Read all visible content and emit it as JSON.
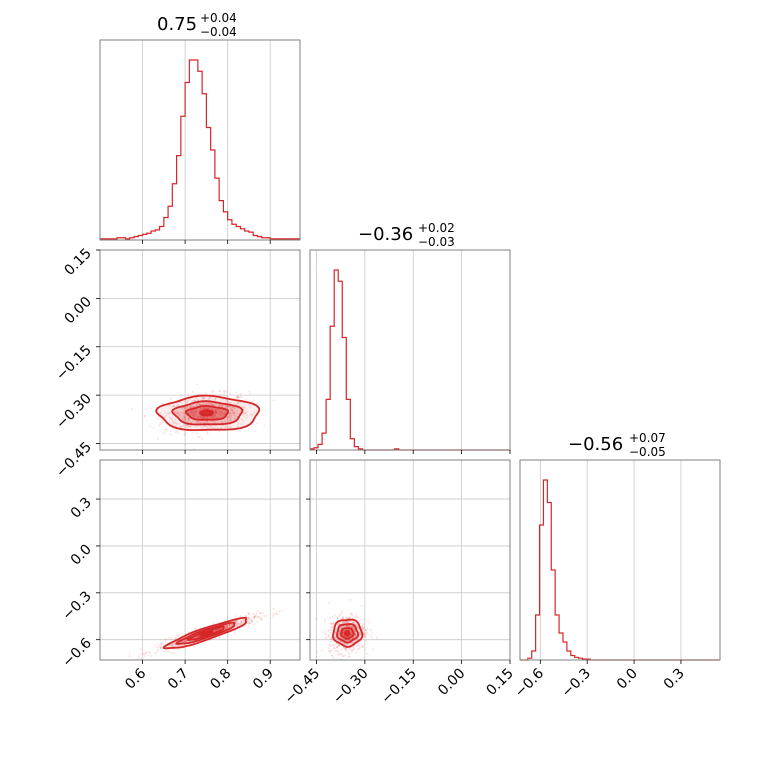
{
  "chart_data": {
    "type": "corner",
    "color": "#d62728",
    "grid": true,
    "panels": {
      "hist_0": {
        "type": "histogram",
        "title": {
          "value": "0.75",
          "plus": "+0.04",
          "minus": "−0.04"
        },
        "xlim": [
          0.5,
          0.97
        ],
        "bin_width": 0.01,
        "bin_start": 0.5,
        "counts": [
          1,
          1,
          1,
          1,
          2,
          2,
          1,
          2,
          3,
          4,
          5,
          6,
          8,
          9,
          12,
          20,
          30,
          50,
          75,
          110,
          140,
          160,
          160,
          150,
          130,
          100,
          80,
          55,
          35,
          25,
          18,
          14,
          12,
          10,
          8,
          7,
          4,
          3,
          2,
          2,
          1,
          1,
          1,
          1,
          1,
          1,
          1
        ],
        "xticks": [
          0.6,
          0.7,
          0.8,
          0.9
        ]
      },
      "hist_1": {
        "type": "histogram",
        "title": {
          "value": "−0.36",
          "plus": "+0.02",
          "minus": "−0.03"
        },
        "xlim": [
          -0.47,
          0.15
        ],
        "bin_width": 0.0125,
        "bin_start": -0.47,
        "counts": [
          1,
          2,
          5,
          15,
          45,
          110,
          160,
          150,
          100,
          45,
          10,
          3,
          1,
          0,
          0,
          0,
          0,
          0,
          0,
          0,
          0,
          1,
          0,
          0,
          0,
          0,
          0,
          0,
          0,
          0,
          0,
          0,
          0,
          0,
          0,
          0,
          0,
          0,
          0,
          0,
          0,
          0,
          0,
          0,
          0,
          0,
          0,
          0,
          0,
          0
        ],
        "xticks": [
          -0.45,
          -0.3,
          -0.15,
          0.0,
          0.15
        ]
      },
      "hist_2": {
        "type": "histogram",
        "title": {
          "value": "−0.56",
          "plus": "+0.07",
          "minus": "−0.05"
        },
        "xlim": [
          -0.73,
          0.55
        ],
        "bin_width": 0.025,
        "bin_start": -0.73,
        "counts": [
          0,
          0,
          2,
          10,
          50,
          150,
          200,
          175,
          100,
          50,
          30,
          20,
          10,
          5,
          3,
          2,
          1,
          1,
          0,
          0,
          0,
          0,
          0,
          0,
          0,
          0,
          0,
          0,
          0,
          0,
          0,
          0,
          0,
          0,
          0,
          0,
          0,
          0,
          0,
          0,
          0,
          0,
          0,
          0,
          0,
          0,
          0,
          0,
          0,
          0,
          0
        ],
        "xticks": [
          -0.6,
          -0.3,
          0.0,
          0.3
        ]
      },
      "scatter_1_0": {
        "type": "2d-density",
        "xlim": [
          0.5,
          0.97
        ],
        "ylim": [
          -0.47,
          0.15
        ],
        "center": [
          0.75,
          -0.355
        ],
        "yticks": [
          0.15,
          0.0,
          -0.15,
          -0.3,
          -0.45
        ]
      },
      "scatter_2_0": {
        "type": "2d-density",
        "xlim": [
          0.5,
          0.97
        ],
        "ylim": [
          -0.73,
          0.55
        ],
        "center": [
          0.75,
          -0.56
        ],
        "xticks": [
          0.6,
          0.7,
          0.8,
          0.9
        ],
        "yticks": [
          0.3,
          0.0,
          -0.3,
          -0.6
        ]
      },
      "scatter_2_1": {
        "type": "2d-density",
        "xlim": [
          -0.47,
          0.15
        ],
        "ylim": [
          -0.73,
          0.55
        ],
        "center": [
          -0.355,
          -0.56
        ],
        "xticks": [
          -0.45,
          -0.3,
          -0.15,
          0.0,
          0.15
        ]
      }
    }
  }
}
